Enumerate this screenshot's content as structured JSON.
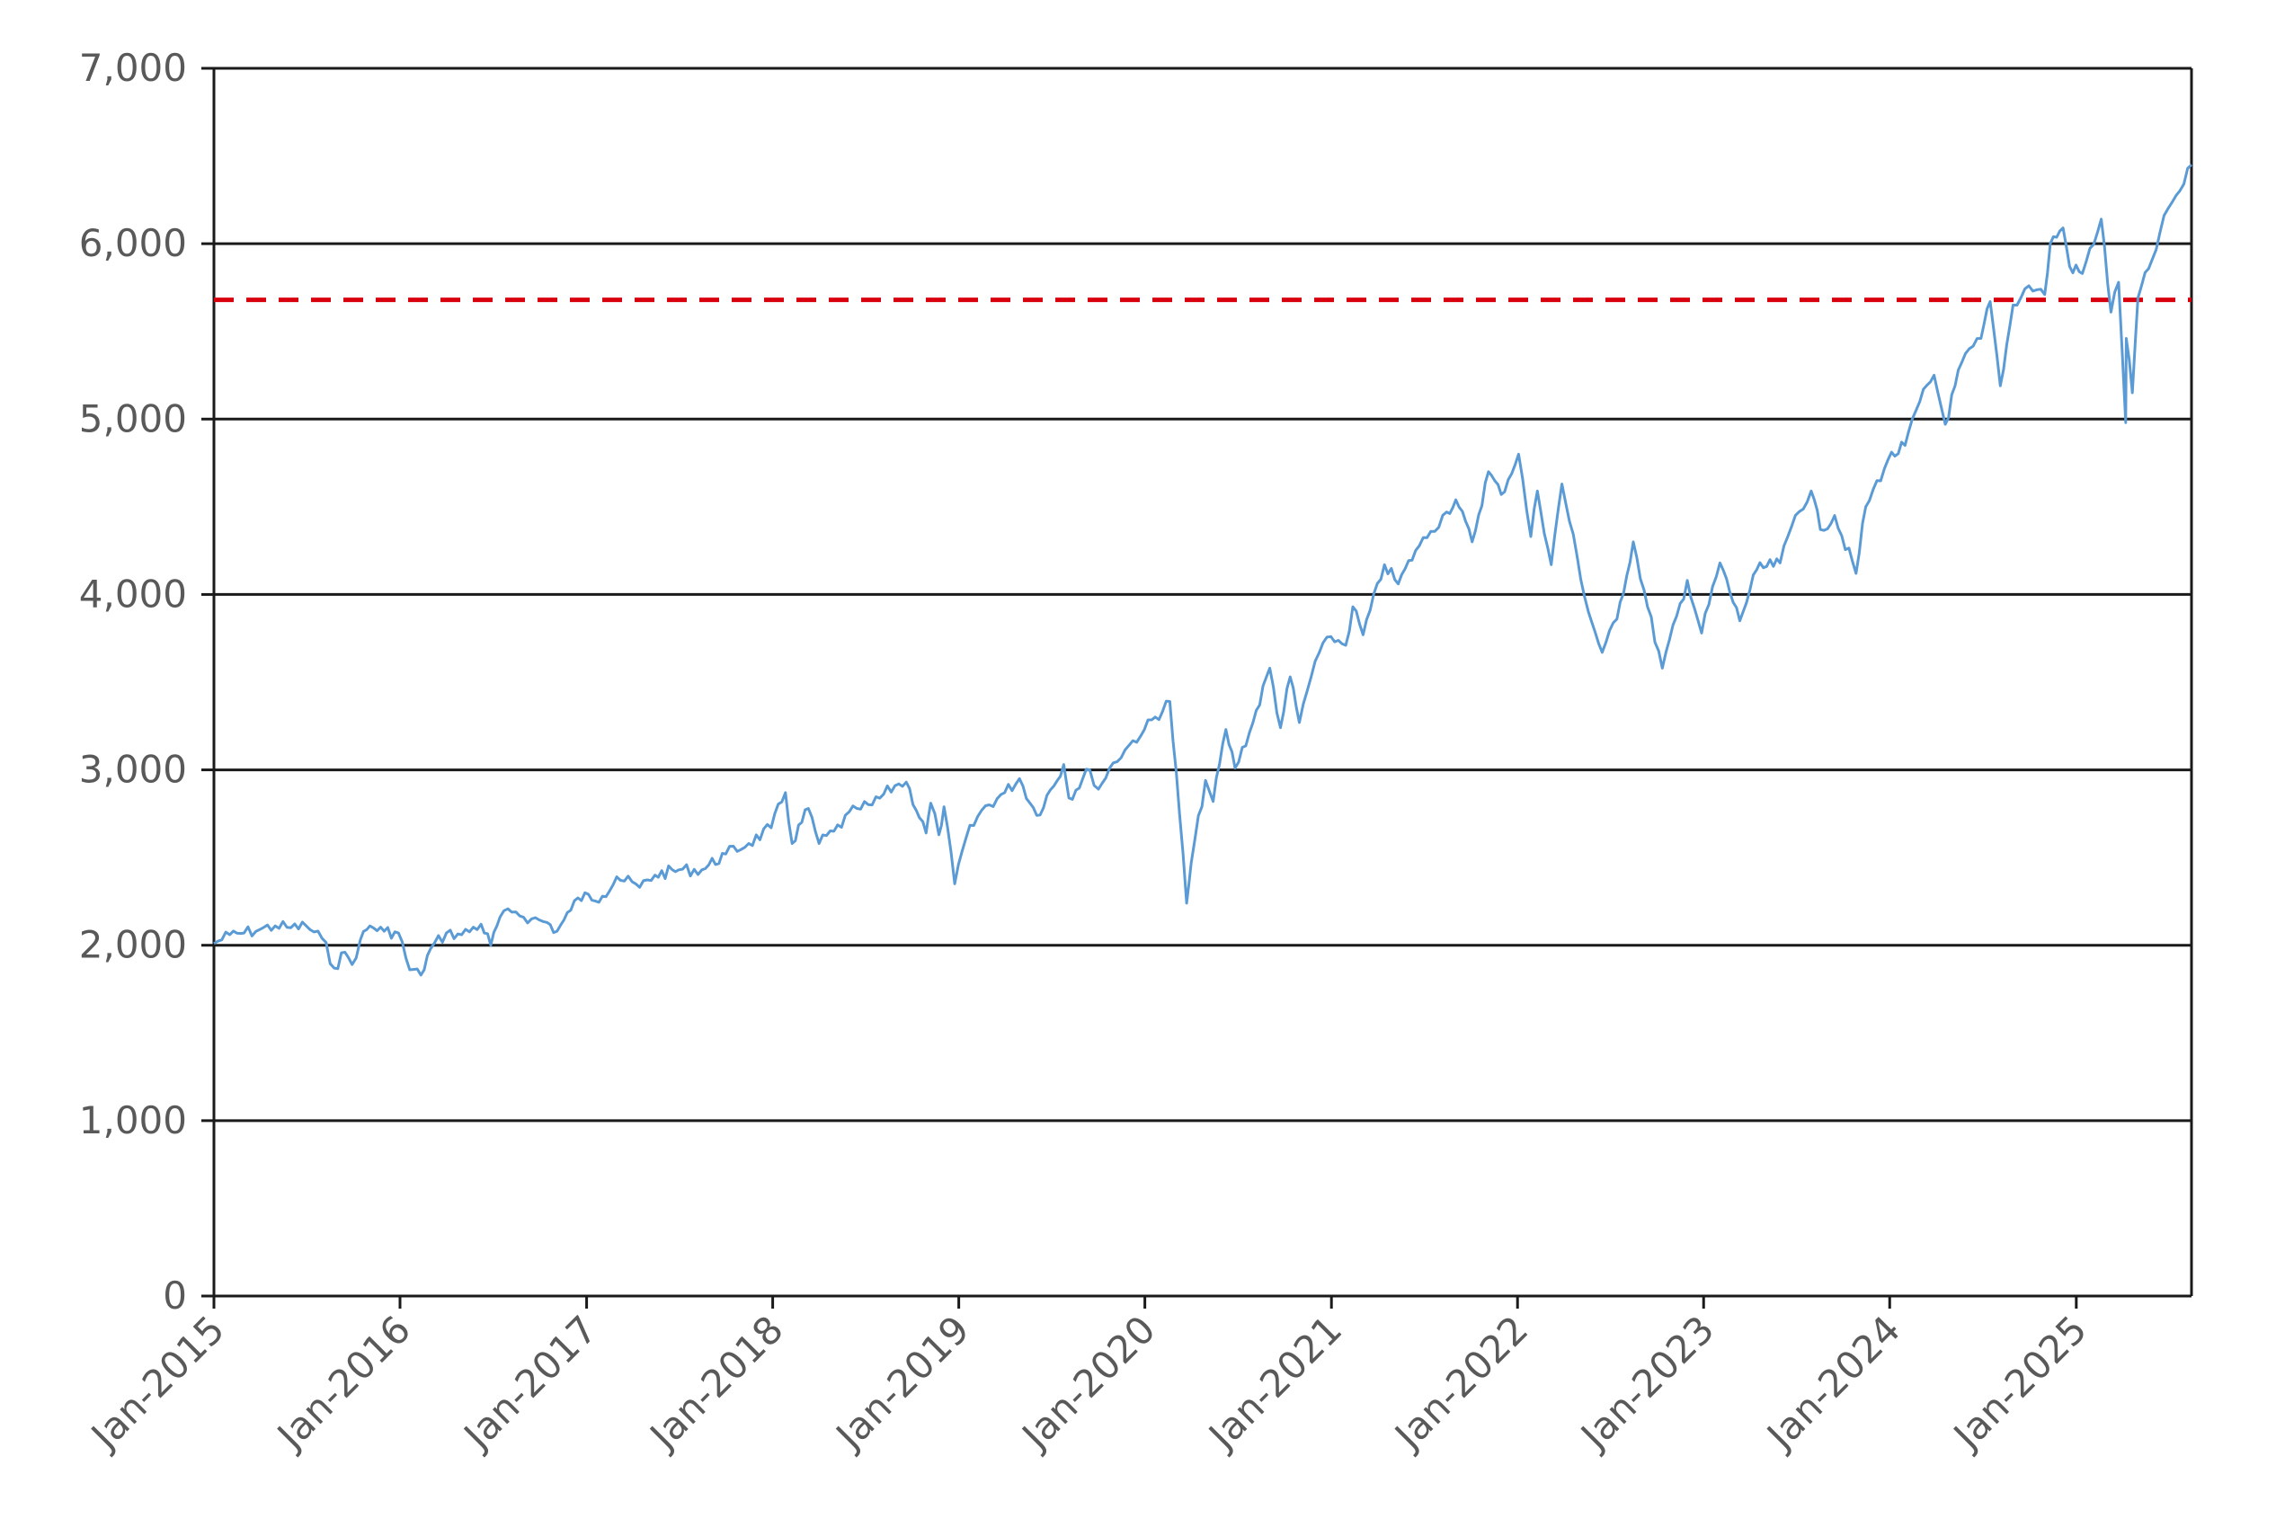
{
  "chart_data": {
    "type": "line",
    "title": "",
    "xlabel": "",
    "ylabel": "",
    "x_range": [
      "2015-01-01",
      "2025-08-15"
    ],
    "ylim": [
      0,
      7000
    ],
    "y_ticks": [
      0,
      1000,
      2000,
      3000,
      4000,
      5000,
      6000,
      7000
    ],
    "y_tick_labels": [
      "0",
      "1,000",
      "2,000",
      "3,000",
      "4,000",
      "5,000",
      "6,000",
      "7,000"
    ],
    "x_ticks": [
      "2015-01-01",
      "2016-01-01",
      "2017-01-01",
      "2018-01-01",
      "2019-01-01",
      "2020-01-01",
      "2021-01-01",
      "2022-01-01",
      "2023-01-01",
      "2024-01-01",
      "2025-01-01"
    ],
    "x_tick_labels": [
      "Jan-2015",
      "Jan-2016",
      "Jan-2017",
      "Jan-2018",
      "Jan-2019",
      "Jan-2020",
      "Jan-2021",
      "Jan-2022",
      "Jan-2023",
      "Jan-2024",
      "Jan-2025"
    ],
    "grid": "horizontal",
    "legend": "none",
    "reference_line": {
      "y": 5680,
      "style": "dashed",
      "color": "#d9000d"
    },
    "series": [
      {
        "color": "#5b9bd5",
        "points": [
          [
            "2015-01-01",
            2010
          ],
          [
            "2015-02-01",
            2060
          ],
          [
            "2015-03-01",
            2070
          ],
          [
            "2015-04-01",
            2090
          ],
          [
            "2015-05-01",
            2110
          ],
          [
            "2015-06-01",
            2100
          ],
          [
            "2015-07-01",
            2110
          ],
          [
            "2015-08-01",
            2040
          ],
          [
            "2015-08-25",
            1870
          ],
          [
            "2015-09-15",
            1960
          ],
          [
            "2015-09-29",
            1890
          ],
          [
            "2015-10-15",
            2030
          ],
          [
            "2015-11-03",
            2110
          ],
          [
            "2015-12-01",
            2080
          ],
          [
            "2015-12-29",
            2070
          ],
          [
            "2016-01-20",
            1860
          ],
          [
            "2016-02-11",
            1830
          ],
          [
            "2016-03-01",
            1980
          ],
          [
            "2016-04-01",
            2070
          ],
          [
            "2016-05-01",
            2060
          ],
          [
            "2016-06-08",
            2120
          ],
          [
            "2016-06-27",
            2000
          ],
          [
            "2016-07-15",
            2160
          ],
          [
            "2016-08-15",
            2190
          ],
          [
            "2016-09-15",
            2150
          ],
          [
            "2016-10-15",
            2130
          ],
          [
            "2016-11-04",
            2080
          ],
          [
            "2016-12-01",
            2200
          ],
          [
            "2016-12-15",
            2270
          ],
          [
            "2017-02-01",
            2280
          ],
          [
            "2017-03-01",
            2390
          ],
          [
            "2017-04-15",
            2330
          ],
          [
            "2017-05-15",
            2400
          ],
          [
            "2017-07-01",
            2430
          ],
          [
            "2017-08-15",
            2430
          ],
          [
            "2017-10-01",
            2520
          ],
          [
            "2017-11-15",
            2580
          ],
          [
            "2017-12-29",
            2670
          ],
          [
            "2018-01-26",
            2870
          ],
          [
            "2018-02-08",
            2580
          ],
          [
            "2018-03-12",
            2780
          ],
          [
            "2018-04-02",
            2580
          ],
          [
            "2018-05-01",
            2650
          ],
          [
            "2018-06-15",
            2780
          ],
          [
            "2018-07-15",
            2800
          ],
          [
            "2018-08-29",
            2910
          ],
          [
            "2018-09-20",
            2930
          ],
          [
            "2018-10-29",
            2640
          ],
          [
            "2018-11-07",
            2810
          ],
          [
            "2018-11-23",
            2630
          ],
          [
            "2018-12-03",
            2790
          ],
          [
            "2018-12-24",
            2350
          ],
          [
            "2019-01-15",
            2610
          ],
          [
            "2019-02-15",
            2770
          ],
          [
            "2019-04-01",
            2870
          ],
          [
            "2019-04-30",
            2950
          ],
          [
            "2019-06-03",
            2740
          ],
          [
            "2019-07-26",
            3030
          ],
          [
            "2019-08-05",
            2840
          ],
          [
            "2019-09-15",
            3000
          ],
          [
            "2019-10-02",
            2890
          ],
          [
            "2019-10-31",
            3040
          ],
          [
            "2019-12-01",
            3140
          ],
          [
            "2019-12-31",
            3230
          ],
          [
            "2020-02-19",
            3390
          ],
          [
            "2020-03-09",
            2750
          ],
          [
            "2020-03-23",
            2240
          ],
          [
            "2020-04-01",
            2470
          ],
          [
            "2020-04-29",
            2940
          ],
          [
            "2020-05-14",
            2820
          ],
          [
            "2020-06-08",
            3230
          ],
          [
            "2020-06-26",
            3010
          ],
          [
            "2020-07-31",
            3270
          ],
          [
            "2020-09-02",
            3580
          ],
          [
            "2020-09-23",
            3240
          ],
          [
            "2020-10-12",
            3530
          ],
          [
            "2020-10-30",
            3270
          ],
          [
            "2020-11-30",
            3620
          ],
          [
            "2020-12-31",
            3760
          ],
          [
            "2021-01-29",
            3710
          ],
          [
            "2021-02-12",
            3930
          ],
          [
            "2021-03-04",
            3770
          ],
          [
            "2021-04-15",
            4170
          ],
          [
            "2021-05-12",
            4060
          ],
          [
            "2021-06-15",
            4250
          ],
          [
            "2021-07-15",
            4360
          ],
          [
            "2021-08-15",
            4470
          ],
          [
            "2021-09-02",
            4540
          ],
          [
            "2021-10-04",
            4300
          ],
          [
            "2021-11-05",
            4700
          ],
          [
            "2021-11-30",
            4570
          ],
          [
            "2022-01-03",
            4800
          ],
          [
            "2022-01-27",
            4330
          ],
          [
            "2022-02-09",
            4590
          ],
          [
            "2022-03-08",
            4170
          ],
          [
            "2022-03-29",
            4630
          ],
          [
            "2022-05-20",
            3900
          ],
          [
            "2022-06-16",
            3670
          ],
          [
            "2022-07-15",
            3860
          ],
          [
            "2022-08-16",
            4300
          ],
          [
            "2022-09-13",
            3930
          ],
          [
            "2022-10-12",
            3580
          ],
          [
            "2022-11-30",
            4080
          ],
          [
            "2022-12-28",
            3780
          ],
          [
            "2023-02-02",
            4180
          ],
          [
            "2023-03-13",
            3850
          ],
          [
            "2023-04-15",
            4140
          ],
          [
            "2023-05-31",
            4180
          ],
          [
            "2023-06-30",
            4450
          ],
          [
            "2023-07-31",
            4590
          ],
          [
            "2023-08-18",
            4370
          ],
          [
            "2023-09-15",
            4450
          ],
          [
            "2023-10-27",
            4120
          ],
          [
            "2023-11-15",
            4500
          ],
          [
            "2023-12-29",
            4770
          ],
          [
            "2024-01-31",
            4850
          ],
          [
            "2024-02-29",
            5100
          ],
          [
            "2024-03-28",
            5250
          ],
          [
            "2024-04-19",
            4970
          ],
          [
            "2024-05-21",
            5320
          ],
          [
            "2024-06-28",
            5460
          ],
          [
            "2024-07-16",
            5670
          ],
          [
            "2024-08-05",
            5190
          ],
          [
            "2024-08-30",
            5650
          ],
          [
            "2024-09-30",
            5760
          ],
          [
            "2024-10-31",
            5710
          ],
          [
            "2024-11-11",
            6000
          ],
          [
            "2024-12-06",
            6090
          ],
          [
            "2024-12-19",
            5870
          ],
          [
            "2025-01-13",
            5830
          ],
          [
            "2025-02-19",
            6140
          ],
          [
            "2025-03-10",
            5610
          ],
          [
            "2025-03-25",
            5780
          ],
          [
            "2025-04-08",
            4980
          ],
          [
            "2025-04-09",
            5460
          ],
          [
            "2025-04-21",
            5150
          ],
          [
            "2025-05-02",
            5690
          ],
          [
            "2025-05-30",
            5910
          ],
          [
            "2025-06-30",
            6200
          ],
          [
            "2025-07-31",
            6340
          ],
          [
            "2025-08-15",
            6450
          ]
        ]
      }
    ]
  }
}
